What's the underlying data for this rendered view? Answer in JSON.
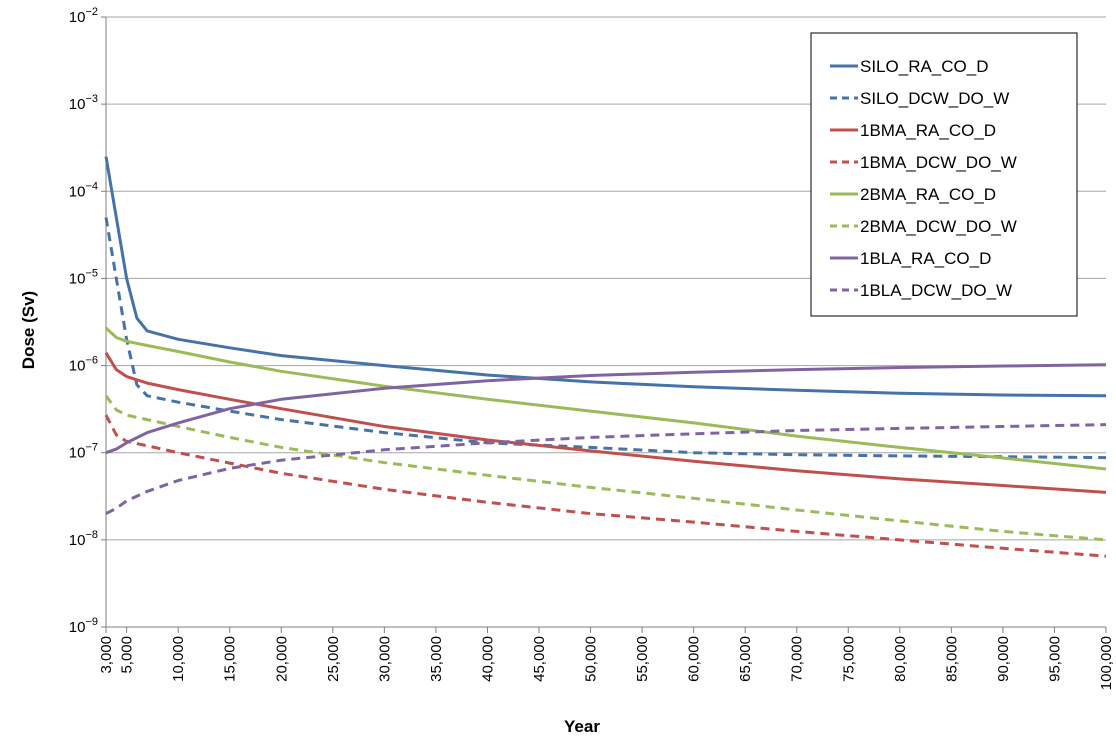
{
  "chart_data": {
    "type": "line",
    "title": "",
    "xlabel": "Year",
    "ylabel": "Dose (Sv)",
    "yscale": "log",
    "ylim": [
      1e-09,
      0.01
    ],
    "xlim": [
      3000,
      100000
    ],
    "y_ticks": [
      {
        "base": "10",
        "exp": "−9"
      },
      {
        "base": "10",
        "exp": "−8"
      },
      {
        "base": "10",
        "exp": "−7"
      },
      {
        "base": "10",
        "exp": "−6"
      },
      {
        "base": "10",
        "exp": "−5"
      },
      {
        "base": "10",
        "exp": "−4"
      },
      {
        "base": "10",
        "exp": "−3"
      },
      {
        "base": "10",
        "exp": "−2"
      }
    ],
    "x_ticks": [
      {
        "value": 3000,
        "label": "3,000"
      },
      {
        "value": 5000,
        "label": "5,000"
      },
      {
        "value": 10000,
        "label": "10,000"
      },
      {
        "value": 15000,
        "label": "15,000"
      },
      {
        "value": 20000,
        "label": "20,000"
      },
      {
        "value": 25000,
        "label": "25,000"
      },
      {
        "value": 30000,
        "label": "30,000"
      },
      {
        "value": 35000,
        "label": "35,000"
      },
      {
        "value": 40000,
        "label": "40,000"
      },
      {
        "value": 45000,
        "label": "45,000"
      },
      {
        "value": 50000,
        "label": "50,000"
      },
      {
        "value": 55000,
        "label": "55,000"
      },
      {
        "value": 60000,
        "label": "60,000"
      },
      {
        "value": 65000,
        "label": "65,000"
      },
      {
        "value": 70000,
        "label": "70,000"
      },
      {
        "value": 75000,
        "label": "75,000"
      },
      {
        "value": 80000,
        "label": "80,000"
      },
      {
        "value": 85000,
        "label": "85,000"
      },
      {
        "value": 90000,
        "label": "90,000"
      },
      {
        "value": 95000,
        "label": "95,000"
      },
      {
        "value": 100000,
        "label": "100,000"
      }
    ],
    "grid": "horizontal",
    "legend_position": "top-right",
    "series": [
      {
        "name": "SILO_RA_CO_D",
        "color": "#4573a7",
        "dash": "solid",
        "x": [
          3000,
          4000,
          5000,
          6000,
          7000,
          10000,
          15000,
          20000,
          30000,
          40000,
          50000,
          60000,
          70000,
          80000,
          90000,
          100000
        ],
        "y": [
          0.00025,
          5e-05,
          1e-05,
          3.5e-06,
          2.5e-06,
          2e-06,
          1.6e-06,
          1.3e-06,
          1e-06,
          7.8e-07,
          6.5e-07,
          5.7e-07,
          5.2e-07,
          4.8e-07,
          4.6e-07,
          4.5e-07
        ]
      },
      {
        "name": "SILO_DCW_DO_W",
        "color": "#4573a7",
        "dash": "dashed",
        "x": [
          3000,
          4000,
          5000,
          6000,
          7000,
          10000,
          15000,
          20000,
          30000,
          40000,
          50000,
          60000,
          70000,
          80000,
          90000,
          100000
        ],
        "y": [
          5e-05,
          1e-05,
          2e-06,
          6e-07,
          4.5e-07,
          3.8e-07,
          3e-07,
          2.4e-07,
          1.7e-07,
          1.3e-07,
          1.15e-07,
          1e-07,
          9.5e-08,
          9.2e-08,
          9e-08,
          8.8e-08
        ]
      },
      {
        "name": "1BMA_RA_CO_D",
        "color": "#c0504d",
        "dash": "solid",
        "x": [
          3000,
          4000,
          5000,
          7000,
          10000,
          15000,
          20000,
          30000,
          40000,
          50000,
          60000,
          70000,
          80000,
          90000,
          100000
        ],
        "y": [
          1.4e-06,
          9e-07,
          7.5e-07,
          6.3e-07,
          5.3e-07,
          4.1e-07,
          3.2e-07,
          2e-07,
          1.4e-07,
          1.05e-07,
          8e-08,
          6.2e-08,
          5e-08,
          4.2e-08,
          3.5e-08
        ]
      },
      {
        "name": "1BMA_DCW_DO_W",
        "color": "#c0504d",
        "dash": "dashed",
        "x": [
          3000,
          4000,
          5000,
          7000,
          10000,
          15000,
          20000,
          30000,
          40000,
          50000,
          60000,
          70000,
          80000,
          90000,
          100000
        ],
        "y": [
          2.7e-07,
          1.6e-07,
          1.35e-07,
          1.2e-07,
          1e-07,
          7.6e-08,
          5.8e-08,
          3.8e-08,
          2.7e-08,
          2e-08,
          1.6e-08,
          1.25e-08,
          1e-08,
          8e-09,
          6.5e-09
        ]
      },
      {
        "name": "2BMA_RA_CO_D",
        "color": "#9bbb59",
        "dash": "solid",
        "x": [
          3000,
          4000,
          5000,
          7000,
          10000,
          15000,
          20000,
          30000,
          40000,
          50000,
          60000,
          70000,
          80000,
          90000,
          100000
        ],
        "y": [
          2.7e-06,
          2.1e-06,
          1.9e-06,
          1.7e-06,
          1.45e-06,
          1.1e-06,
          8.6e-07,
          5.8e-07,
          4.1e-07,
          3e-07,
          2.2e-07,
          1.55e-07,
          1.15e-07,
          8.7e-08,
          6.5e-08
        ]
      },
      {
        "name": "2BMA_DCW_DO_W",
        "color": "#9bbb59",
        "dash": "dashed",
        "x": [
          3000,
          4000,
          5000,
          7000,
          10000,
          15000,
          20000,
          30000,
          40000,
          50000,
          60000,
          70000,
          80000,
          90000,
          100000
        ],
        "y": [
          4.5e-07,
          3.1e-07,
          2.7e-07,
          2.4e-07,
          2e-07,
          1.5e-07,
          1.15e-07,
          7.7e-08,
          5.5e-08,
          4e-08,
          3e-08,
          2.2e-08,
          1.65e-08,
          1.25e-08,
          1e-08
        ]
      },
      {
        "name": "1BLA_RA_CO_D",
        "color": "#8064a2",
        "dash": "solid",
        "x": [
          3000,
          4000,
          5000,
          7000,
          10000,
          15000,
          20000,
          30000,
          40000,
          50000,
          60000,
          70000,
          80000,
          90000,
          100000
        ],
        "y": [
          1e-07,
          1.1e-07,
          1.3e-07,
          1.7e-07,
          2.2e-07,
          3.2e-07,
          4.1e-07,
          5.5e-07,
          6.7e-07,
          7.7e-07,
          8.4e-07,
          9e-07,
          9.5e-07,
          9.9e-07,
          1.02e-06
        ]
      },
      {
        "name": "1BLA_DCW_DO_W",
        "color": "#8064a2",
        "dash": "dashed",
        "x": [
          3000,
          4000,
          5000,
          7000,
          10000,
          15000,
          20000,
          30000,
          40000,
          50000,
          60000,
          70000,
          80000,
          90000,
          100000
        ],
        "y": [
          2e-08,
          2.3e-08,
          2.8e-08,
          3.6e-08,
          4.8e-08,
          6.6e-08,
          8.2e-08,
          1.08e-07,
          1.3e-07,
          1.5e-07,
          1.65e-07,
          1.8e-07,
          1.9e-07,
          2e-07,
          2.1e-07
        ]
      }
    ]
  }
}
